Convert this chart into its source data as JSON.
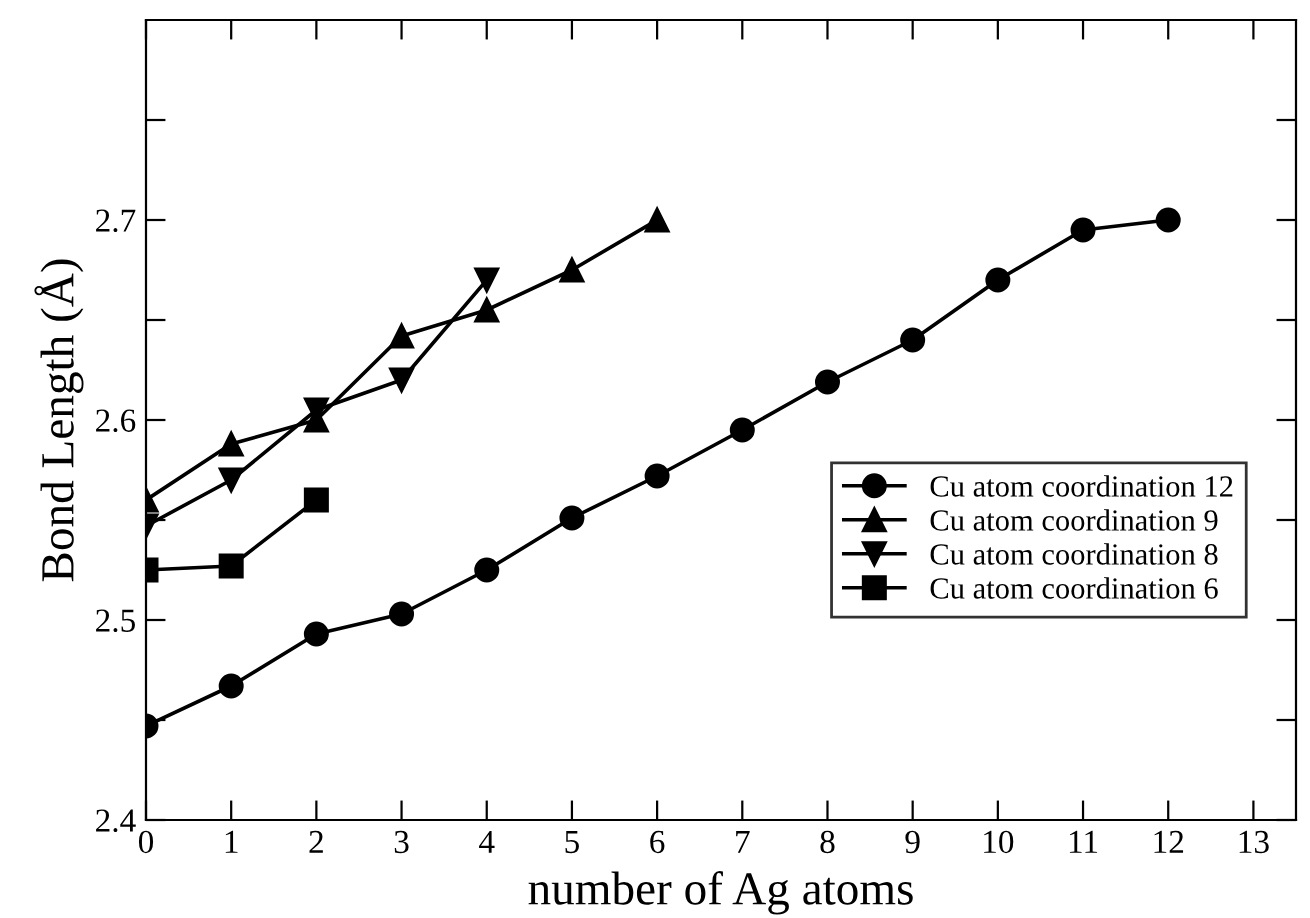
{
  "chart_data": {
    "type": "line",
    "xlabel": "number of Ag atoms",
    "ylabel": "Bond Length (Å)",
    "xlim": [
      0,
      13.5
    ],
    "xticks": [
      0,
      1,
      2,
      3,
      4,
      5,
      6,
      7,
      8,
      9,
      10,
      11,
      12,
      13
    ],
    "ylim": [
      2.4,
      2.8
    ],
    "yticks": [
      2.4,
      {
        "value": 2.45,
        "label": null
      },
      2.5,
      {
        "value": 2.55,
        "label": null
      },
      2.6,
      {
        "value": 2.65,
        "label": null
      },
      2.7,
      {
        "value": 2.75,
        "label": null
      }
    ],
    "legend": "right",
    "grid": false,
    "series": [
      {
        "name": "Cu atom coordination 12",
        "color": "#000000",
        "marker": "circle",
        "x": [
          0,
          1,
          2,
          3,
          4,
          5,
          6,
          7,
          8,
          9,
          10,
          11,
          12
        ],
        "values": [
          2.447,
          2.467,
          2.493,
          2.503,
          2.525,
          2.551,
          2.572,
          2.595,
          2.619,
          2.64,
          2.67,
          2.695,
          2.7
        ]
      },
      {
        "name": "Cu atom coordination 9",
        "color": "#000000",
        "marker": "triangle",
        "x": [
          0,
          1,
          2,
          3,
          4,
          5,
          6
        ],
        "values": [
          2.56,
          2.588,
          2.6,
          2.642,
          2.655,
          2.675,
          2.7
        ]
      },
      {
        "name": "Cu atom coordination 8",
        "color": "#000000",
        "marker": "triangle_down",
        "x": [
          0,
          1,
          2,
          3,
          4
        ],
        "values": [
          2.547,
          2.57,
          2.605,
          2.62,
          2.67
        ]
      },
      {
        "name": "Cu atom coordination 6",
        "color": "#000000",
        "marker": "square",
        "x": [
          0,
          1,
          2
        ],
        "values": [
          2.525,
          2.527,
          2.56
        ]
      }
    ]
  }
}
